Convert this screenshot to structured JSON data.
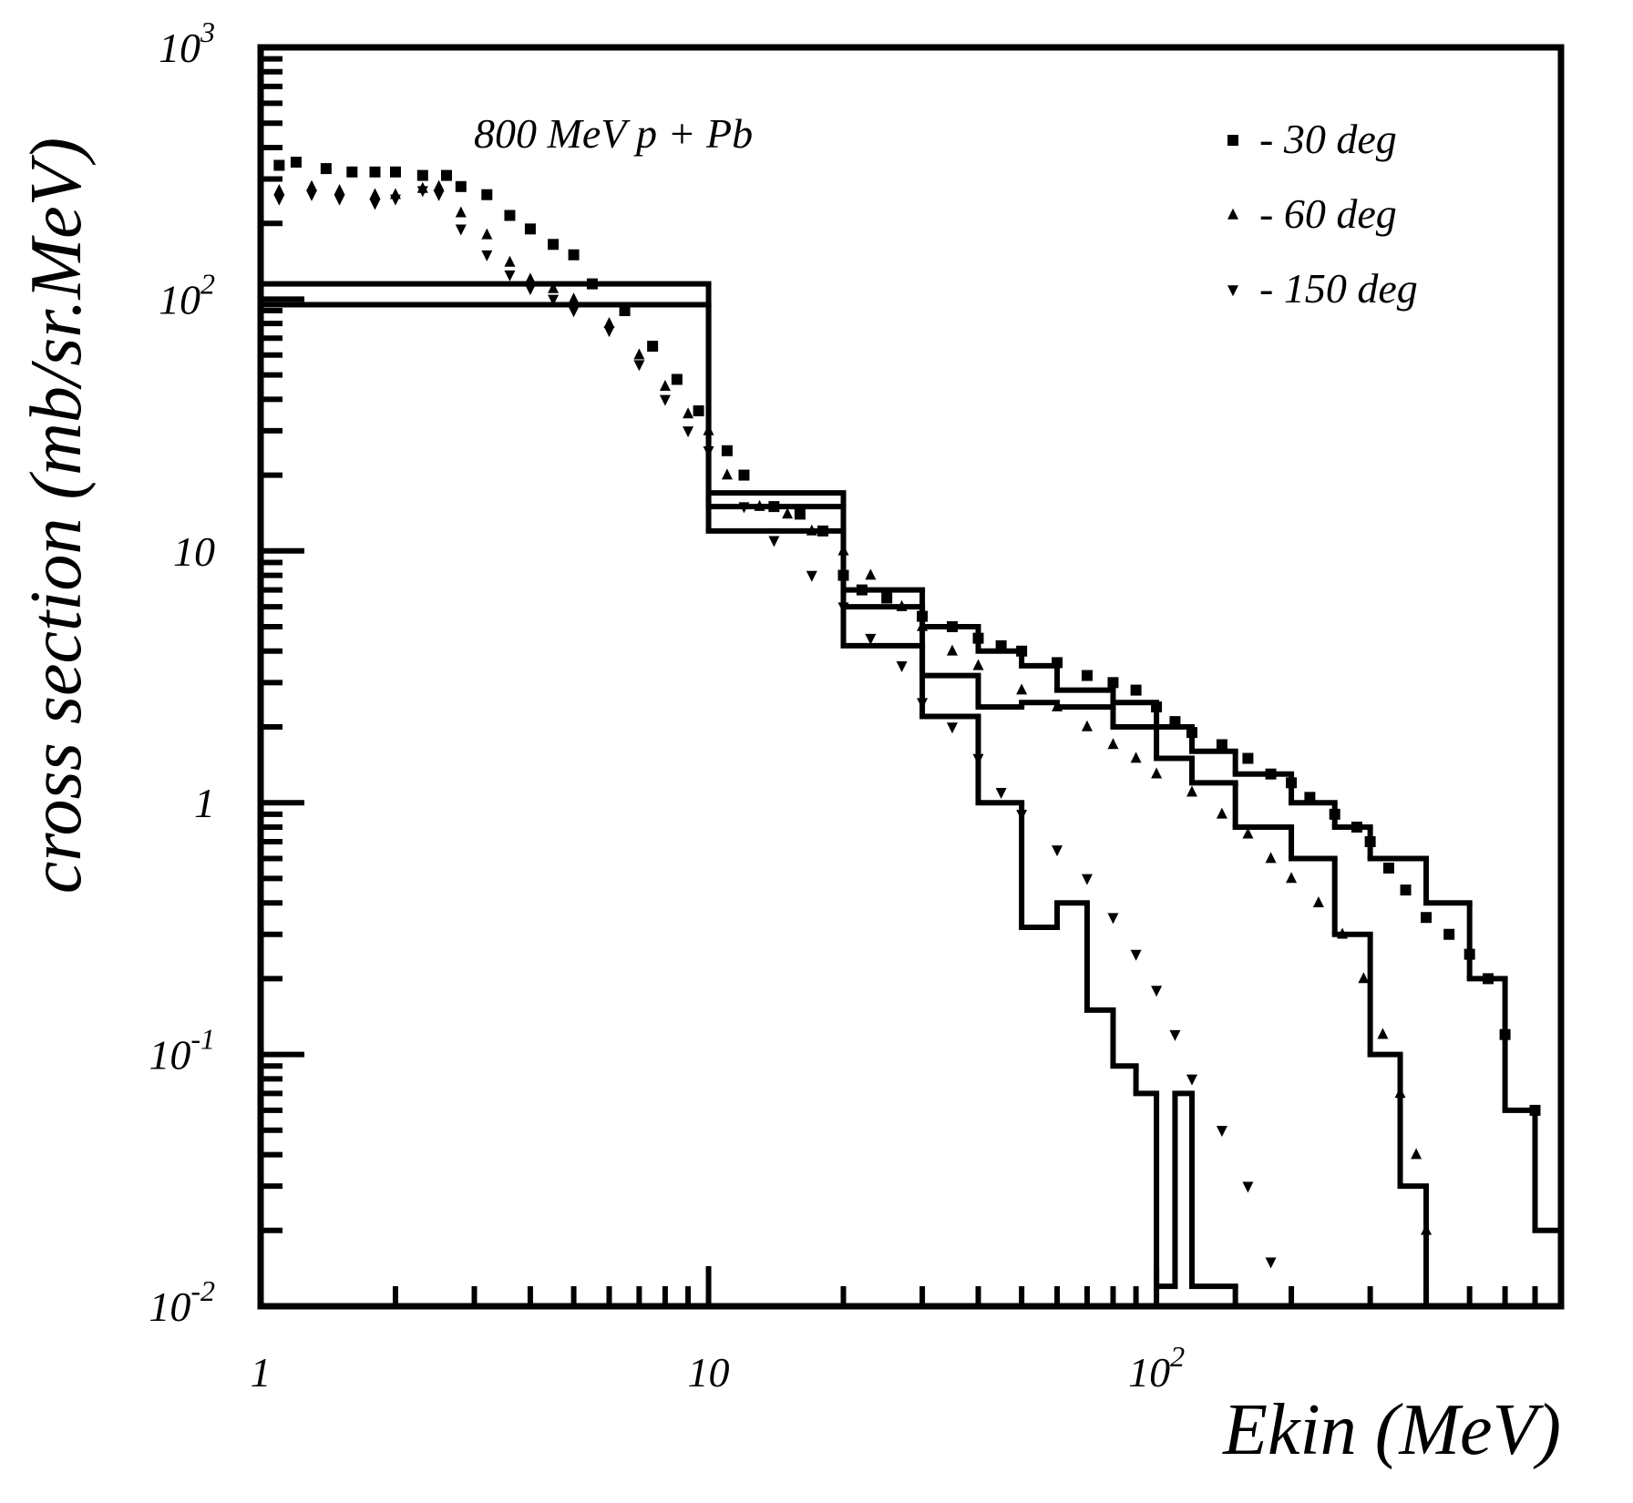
{
  "chart_data": {
    "type": "scatter",
    "annotation": "800 MeV  p + Pb",
    "xlabel": "Ekin (MeV)",
    "ylabel": "cross section (mb/sr.MeV)",
    "log_x": true,
    "log_y": true,
    "legend": "upper right",
    "xlim": [
      1,
      800
    ],
    "ylim": [
      0.01,
      1000
    ],
    "xticks": [
      1,
      10,
      {
        "value": 100,
        "label": "10",
        "exp": "2"
      }
    ],
    "yticks": [
      {
        "value": 0.01,
        "label": "10",
        "exp": "-2"
      },
      {
        "value": 0.1,
        "label": "10",
        "exp": "-1"
      },
      1,
      10,
      {
        "value": 100,
        "label": "10",
        "exp": "2"
      },
      {
        "value": 1000,
        "label": "10",
        "exp": "3"
      }
    ],
    "xminorticks": [
      2,
      3,
      4,
      5,
      6,
      7,
      8,
      9,
      20,
      30,
      40,
      50,
      60,
      70,
      80,
      90,
      200,
      300,
      400,
      500,
      600,
      700
    ],
    "yminorticks": [
      0.02,
      0.03,
      0.04,
      0.05,
      0.06,
      0.07,
      0.08,
      0.09,
      0.2,
      0.3,
      0.4,
      0.5,
      0.6,
      0.7,
      0.8,
      0.9,
      2,
      3,
      4,
      5,
      6,
      7,
      8,
      9,
      20,
      30,
      40,
      50,
      60,
      70,
      80,
      90,
      200,
      300,
      400,
      500,
      600,
      700,
      800,
      900
    ],
    "series": [
      {
        "name": "- 30 deg",
        "marker": "square",
        "color": "#000",
        "x": [
          1.1,
          1.2,
          1.4,
          1.6,
          1.8,
          2.0,
          2.3,
          2.6,
          2.8,
          3.2,
          3.6,
          4.0,
          4.5,
          5.0,
          5.5,
          6.5,
          7.5,
          8.5,
          9.5,
          11,
          12,
          14,
          16,
          18,
          20,
          22,
          25,
          30,
          35,
          40,
          45,
          50,
          60,
          70,
          80,
          90,
          100,
          110,
          120,
          140,
          160,
          180,
          200,
          220,
          250,
          280,
          300,
          330,
          360,
          400,
          450,
          500,
          550,
          600,
          700
        ],
        "values": [
          340,
          350,
          330,
          320,
          320,
          320,
          310,
          310,
          280,
          260,
          215,
          190,
          165,
          150,
          115,
          90,
          65,
          48,
          36,
          25,
          20,
          15,
          14,
          12,
          8,
          7,
          6.5,
          5.5,
          5,
          4.5,
          4.2,
          4,
          3.6,
          3.2,
          3,
          2.8,
          2.4,
          2.1,
          1.9,
          1.7,
          1.5,
          1.3,
          1.2,
          1.05,
          0.9,
          0.8,
          0.7,
          0.55,
          0.45,
          0.35,
          0.3,
          0.25,
          0.2,
          0.12,
          0.06
        ]
      },
      {
        "name": "- 60 deg",
        "marker": "triangle-up",
        "color": "#000",
        "x": [
          1.1,
          1.3,
          1.5,
          1.8,
          2.0,
          2.3,
          2.5,
          2.8,
          3.2,
          3.6,
          4.0,
          4.5,
          5,
          6,
          7,
          8,
          9,
          10,
          11,
          13,
          15,
          17,
          20,
          23,
          27,
          30,
          35,
          40,
          50,
          60,
          70,
          80,
          90,
          100,
          120,
          140,
          160,
          180,
          200,
          230,
          260,
          290,
          320,
          350,
          380,
          400
        ],
        "values": [
          270,
          280,
          270,
          260,
          260,
          275,
          280,
          220,
          180,
          140,
          120,
          110,
          100,
          80,
          60,
          45,
          35,
          30,
          20,
          15,
          14,
          12,
          10,
          8,
          6,
          5,
          4,
          3.5,
          2.8,
          2.4,
          2.0,
          1.7,
          1.5,
          1.3,
          1.1,
          0.9,
          0.75,
          0.6,
          0.5,
          0.4,
          0.3,
          0.2,
          0.12,
          0.07,
          0.04,
          0.02
        ]
      },
      {
        "name": "- 150 deg",
        "marker": "triangle-down",
        "color": "#000",
        "x": [
          1.1,
          1.3,
          1.5,
          1.8,
          2.0,
          2.3,
          2.5,
          2.8,
          3.2,
          3.6,
          4.0,
          4.5,
          5,
          6,
          7,
          8,
          9,
          10,
          12,
          14,
          17,
          20,
          23,
          27,
          30,
          35,
          40,
          45,
          50,
          60,
          70,
          80,
          90,
          100,
          110,
          120,
          140,
          160,
          180
        ],
        "values": [
          250,
          260,
          250,
          240,
          250,
          270,
          260,
          190,
          150,
          125,
          110,
          100,
          90,
          75,
          55,
          40,
          30,
          25,
          15,
          11,
          8,
          6,
          4.5,
          3.5,
          2.5,
          2,
          1.5,
          1.1,
          0.9,
          0.65,
          0.5,
          0.35,
          0.25,
          0.18,
          0.12,
          0.08,
          0.05,
          0.03,
          0.015
        ]
      }
    ],
    "histograms": [
      {
        "bins": [
          1,
          10,
          20,
          30,
          40,
          50,
          60,
          80,
          100,
          120,
          150,
          200,
          250,
          300,
          400,
          500,
          600,
          700,
          800
        ],
        "counts": [
          115,
          17,
          7,
          5,
          4,
          3.5,
          2.8,
          2.5,
          2.0,
          1.6,
          1.3,
          1.0,
          0.8,
          0.6,
          0.4,
          0.2,
          0.06,
          0.02
        ]
      },
      {
        "bins": [
          1,
          10,
          20,
          30,
          40,
          50,
          60,
          80,
          100,
          120,
          150,
          200,
          250,
          300,
          350,
          400
        ],
        "counts": [
          95,
          15,
          6,
          3.2,
          2.4,
          2.5,
          2.4,
          2.0,
          1.5,
          1.2,
          0.8,
          0.6,
          0.3,
          0.1,
          0.03
        ]
      },
      {
        "bins": [
          1,
          10,
          20,
          30,
          40,
          50,
          60,
          70,
          80,
          90,
          100,
          110,
          120,
          150
        ],
        "counts": [
          95,
          12,
          4.2,
          2.2,
          1.0,
          0.32,
          0.4,
          0.15,
          0.09,
          0.07,
          0.012,
          0.07,
          0.012
        ]
      }
    ]
  }
}
